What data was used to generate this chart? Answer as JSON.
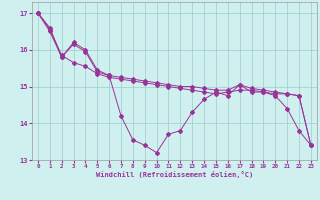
{
  "xlabel": "Windchill (Refroidissement éolien,°C)",
  "background_color": "#cff0ee",
  "line_color": "#993399",
  "grid_color": "#99cccc",
  "xlim": [
    -0.5,
    23.5
  ],
  "ylim": [
    13.0,
    17.3
  ],
  "yticks": [
    13,
    14,
    15,
    16,
    17
  ],
  "xticks": [
    0,
    1,
    2,
    3,
    4,
    5,
    6,
    7,
    8,
    9,
    10,
    11,
    12,
    13,
    14,
    15,
    16,
    17,
    18,
    19,
    20,
    21,
    22,
    23
  ],
  "s1_x": [
    0,
    1,
    2,
    3,
    4,
    5,
    6,
    7,
    8,
    9,
    10,
    11,
    12,
    13,
    14,
    15,
    16,
    17,
    18,
    19,
    20,
    21,
    22,
    23
  ],
  "s1_y": [
    17.0,
    16.6,
    15.8,
    16.2,
    16.0,
    15.45,
    15.3,
    14.2,
    13.55,
    13.4,
    13.2,
    13.7,
    13.8,
    14.3,
    14.65,
    14.85,
    14.75,
    15.05,
    14.85,
    14.85,
    14.75,
    14.4,
    13.8,
    13.4
  ],
  "s2_x": [
    0,
    1,
    2,
    3,
    4,
    5,
    6,
    7,
    8,
    9,
    10,
    11,
    12,
    13,
    14,
    15,
    16,
    17,
    18,
    19,
    20,
    21,
    22,
    23
  ],
  "s2_y": [
    17.0,
    16.55,
    15.85,
    15.65,
    15.55,
    15.35,
    15.25,
    15.2,
    15.15,
    15.1,
    15.05,
    15.0,
    14.95,
    14.9,
    14.85,
    14.8,
    14.85,
    14.9,
    14.9,
    14.85,
    14.8,
    14.8,
    14.75,
    13.4
  ],
  "s3_x": [
    0,
    1,
    2,
    3,
    4,
    5,
    6,
    7,
    8,
    9,
    10,
    11,
    12,
    13,
    14,
    15,
    16,
    17,
    18,
    19,
    20,
    21,
    22,
    23
  ],
  "s3_y": [
    17.0,
    16.5,
    15.8,
    16.15,
    15.95,
    15.4,
    15.3,
    15.25,
    15.2,
    15.15,
    15.1,
    15.05,
    15.0,
    15.0,
    14.95,
    14.9,
    14.9,
    15.05,
    14.95,
    14.9,
    14.85,
    14.8,
    14.75,
    13.4
  ]
}
